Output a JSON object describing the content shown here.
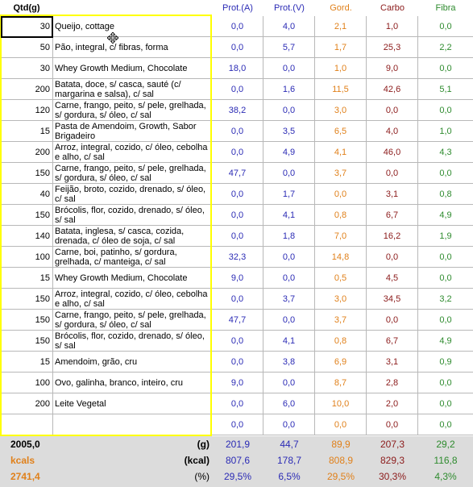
{
  "headers": {
    "qtd": "Qtd(g)",
    "prot_a": "Prot.(A)",
    "prot_v": "Prot.(V)",
    "gord": "Gord.",
    "carbo": "Carbo",
    "fibra": "Fibra"
  },
  "rows": [
    {
      "qtd": "30",
      "name": "Queijo, cottage",
      "prot_a": "0,0",
      "prot_v": "4,0",
      "gord": "2,1",
      "carbo": "1,0",
      "fibra": "0,0"
    },
    {
      "qtd": "50",
      "name": "Pão, integral, c/ fibras, forma",
      "prot_a": "0,0",
      "prot_v": "5,7",
      "gord": "1,7",
      "carbo": "25,3",
      "fibra": "2,2"
    },
    {
      "qtd": "30",
      "name": "Whey Growth Medium, Chocolate",
      "prot_a": "18,0",
      "prot_v": "0,0",
      "gord": "1,0",
      "carbo": "9,0",
      "fibra": "0,0"
    },
    {
      "qtd": "200",
      "name": "Batata, doce, s/ casca, sauté (c/ margarina e salsa), c/ sal",
      "prot_a": "0,0",
      "prot_v": "1,6",
      "gord": "11,5",
      "carbo": "42,6",
      "fibra": "5,1"
    },
    {
      "qtd": "120",
      "name": "Carne, frango, peito, s/ pele, grelhada, s/ gordura, s/ óleo, c/ sal",
      "prot_a": "38,2",
      "prot_v": "0,0",
      "gord": "3,0",
      "carbo": "0,0",
      "fibra": "0,0"
    },
    {
      "qtd": "15",
      "name": "Pasta de Amendoim, Growth, Sabor Brigadeiro",
      "prot_a": "0,0",
      "prot_v": "3,5",
      "gord": "6,5",
      "carbo": "4,0",
      "fibra": "1,0"
    },
    {
      "qtd": "200",
      "name": "Arroz, integral, cozido, c/ óleo, cebolha e alho, c/ sal",
      "prot_a": "0,0",
      "prot_v": "4,9",
      "gord": "4,1",
      "carbo": "46,0",
      "fibra": "4,3"
    },
    {
      "qtd": "150",
      "name": "Carne, frango, peito, s/ pele, grelhada, s/ gordura, s/ óleo, c/ sal",
      "prot_a": "47,7",
      "prot_v": "0,0",
      "gord": "3,7",
      "carbo": "0,0",
      "fibra": "0,0"
    },
    {
      "qtd": "40",
      "name": "Feijão, broto, cozido, drenado, s/ óleo, c/ sal",
      "prot_a": "0,0",
      "prot_v": "1,7",
      "gord": "0,0",
      "carbo": "3,1",
      "fibra": "0,8"
    },
    {
      "qtd": "150",
      "name": "Brócolis, flor, cozido, drenado, s/ óleo, s/ sal",
      "prot_a": "0,0",
      "prot_v": "4,1",
      "gord": "0,8",
      "carbo": "6,7",
      "fibra": "4,9"
    },
    {
      "qtd": "140",
      "name": "Batata, inglesa, s/ casca, cozida, drenada, c/ óleo de soja, c/ sal",
      "prot_a": "0,0",
      "prot_v": "1,8",
      "gord": "7,0",
      "carbo": "16,2",
      "fibra": "1,9"
    },
    {
      "qtd": "100",
      "name": "Carne, boi, patinho, s/ gordura, grelhada, c/ manteiga, c/ sal",
      "prot_a": "32,3",
      "prot_v": "0,0",
      "gord": "14,8",
      "carbo": "0,0",
      "fibra": "0,0"
    },
    {
      "qtd": "15",
      "name": "Whey Growth Medium, Chocolate",
      "prot_a": "9,0",
      "prot_v": "0,0",
      "gord": "0,5",
      "carbo": "4,5",
      "fibra": "0,0"
    },
    {
      "qtd": "150",
      "name": "Arroz, integral, cozido, c/ óleo, cebolha e alho, c/ sal",
      "prot_a": "0,0",
      "prot_v": "3,7",
      "gord": "3,0",
      "carbo": "34,5",
      "fibra": "3,2"
    },
    {
      "qtd": "150",
      "name": "Carne, frango, peito, s/ pele, grelhada, s/ gordura, s/ óleo, c/ sal",
      "prot_a": "47,7",
      "prot_v": "0,0",
      "gord": "3,7",
      "carbo": "0,0",
      "fibra": "0,0"
    },
    {
      "qtd": "150",
      "name": "Brócolis, flor, cozido, drenado, s/ óleo, s/ sal",
      "prot_a": "0,0",
      "prot_v": "4,1",
      "gord": "0,8",
      "carbo": "6,7",
      "fibra": "4,9"
    },
    {
      "qtd": "15",
      "name": "Amendoim, grão, cru",
      "prot_a": "0,0",
      "prot_v": "3,8",
      "gord": "6,9",
      "carbo": "3,1",
      "fibra": "0,9"
    },
    {
      "qtd": "100",
      "name": "Ovo, galinha, branco, inteiro, cru",
      "prot_a": "9,0",
      "prot_v": "0,0",
      "gord": "8,7",
      "carbo": "2,8",
      "fibra": "0,0"
    },
    {
      "qtd": "200",
      "name": "Leite Vegetal",
      "prot_a": "0,0",
      "prot_v": "6,0",
      "gord": "10,0",
      "carbo": "2,0",
      "fibra": "0,0"
    },
    {
      "qtd": "",
      "name": "",
      "prot_a": "0,0",
      "prot_v": "0,0",
      "gord": "0,0",
      "carbo": "0,0",
      "fibra": "0,0"
    }
  ],
  "footer": {
    "grams": {
      "left": "2005,0",
      "left_color": "#000000",
      "unit": "(g)",
      "prot_a": "201,9",
      "prot_v": "44,7",
      "gord": "89,9",
      "carbo": "207,3",
      "fibra": "29,2"
    },
    "kcal": {
      "left": "kcals",
      "left_color": "#e0801a",
      "unit": "(kcal)",
      "prot_a": "807,6",
      "prot_v": "178,7",
      "gord": "808,9",
      "carbo": "829,3",
      "fibra": "116,8"
    },
    "pct": {
      "left": "2741,4",
      "left_color": "#e0801a",
      "unit": "(%)",
      "prot_a": "29,5%",
      "prot_v": "6,5%",
      "gord": "29,5%",
      "carbo": "30,3%",
      "fibra": "4,3%"
    }
  },
  "colors": {
    "protein": "#2b2bb5",
    "fat": "#e0801a",
    "carbs": "#8b1a1a",
    "fiber": "#2e8b2e",
    "highlight_border": "#ffff00"
  },
  "icons": {
    "cursor": "move-cursor-icon"
  }
}
